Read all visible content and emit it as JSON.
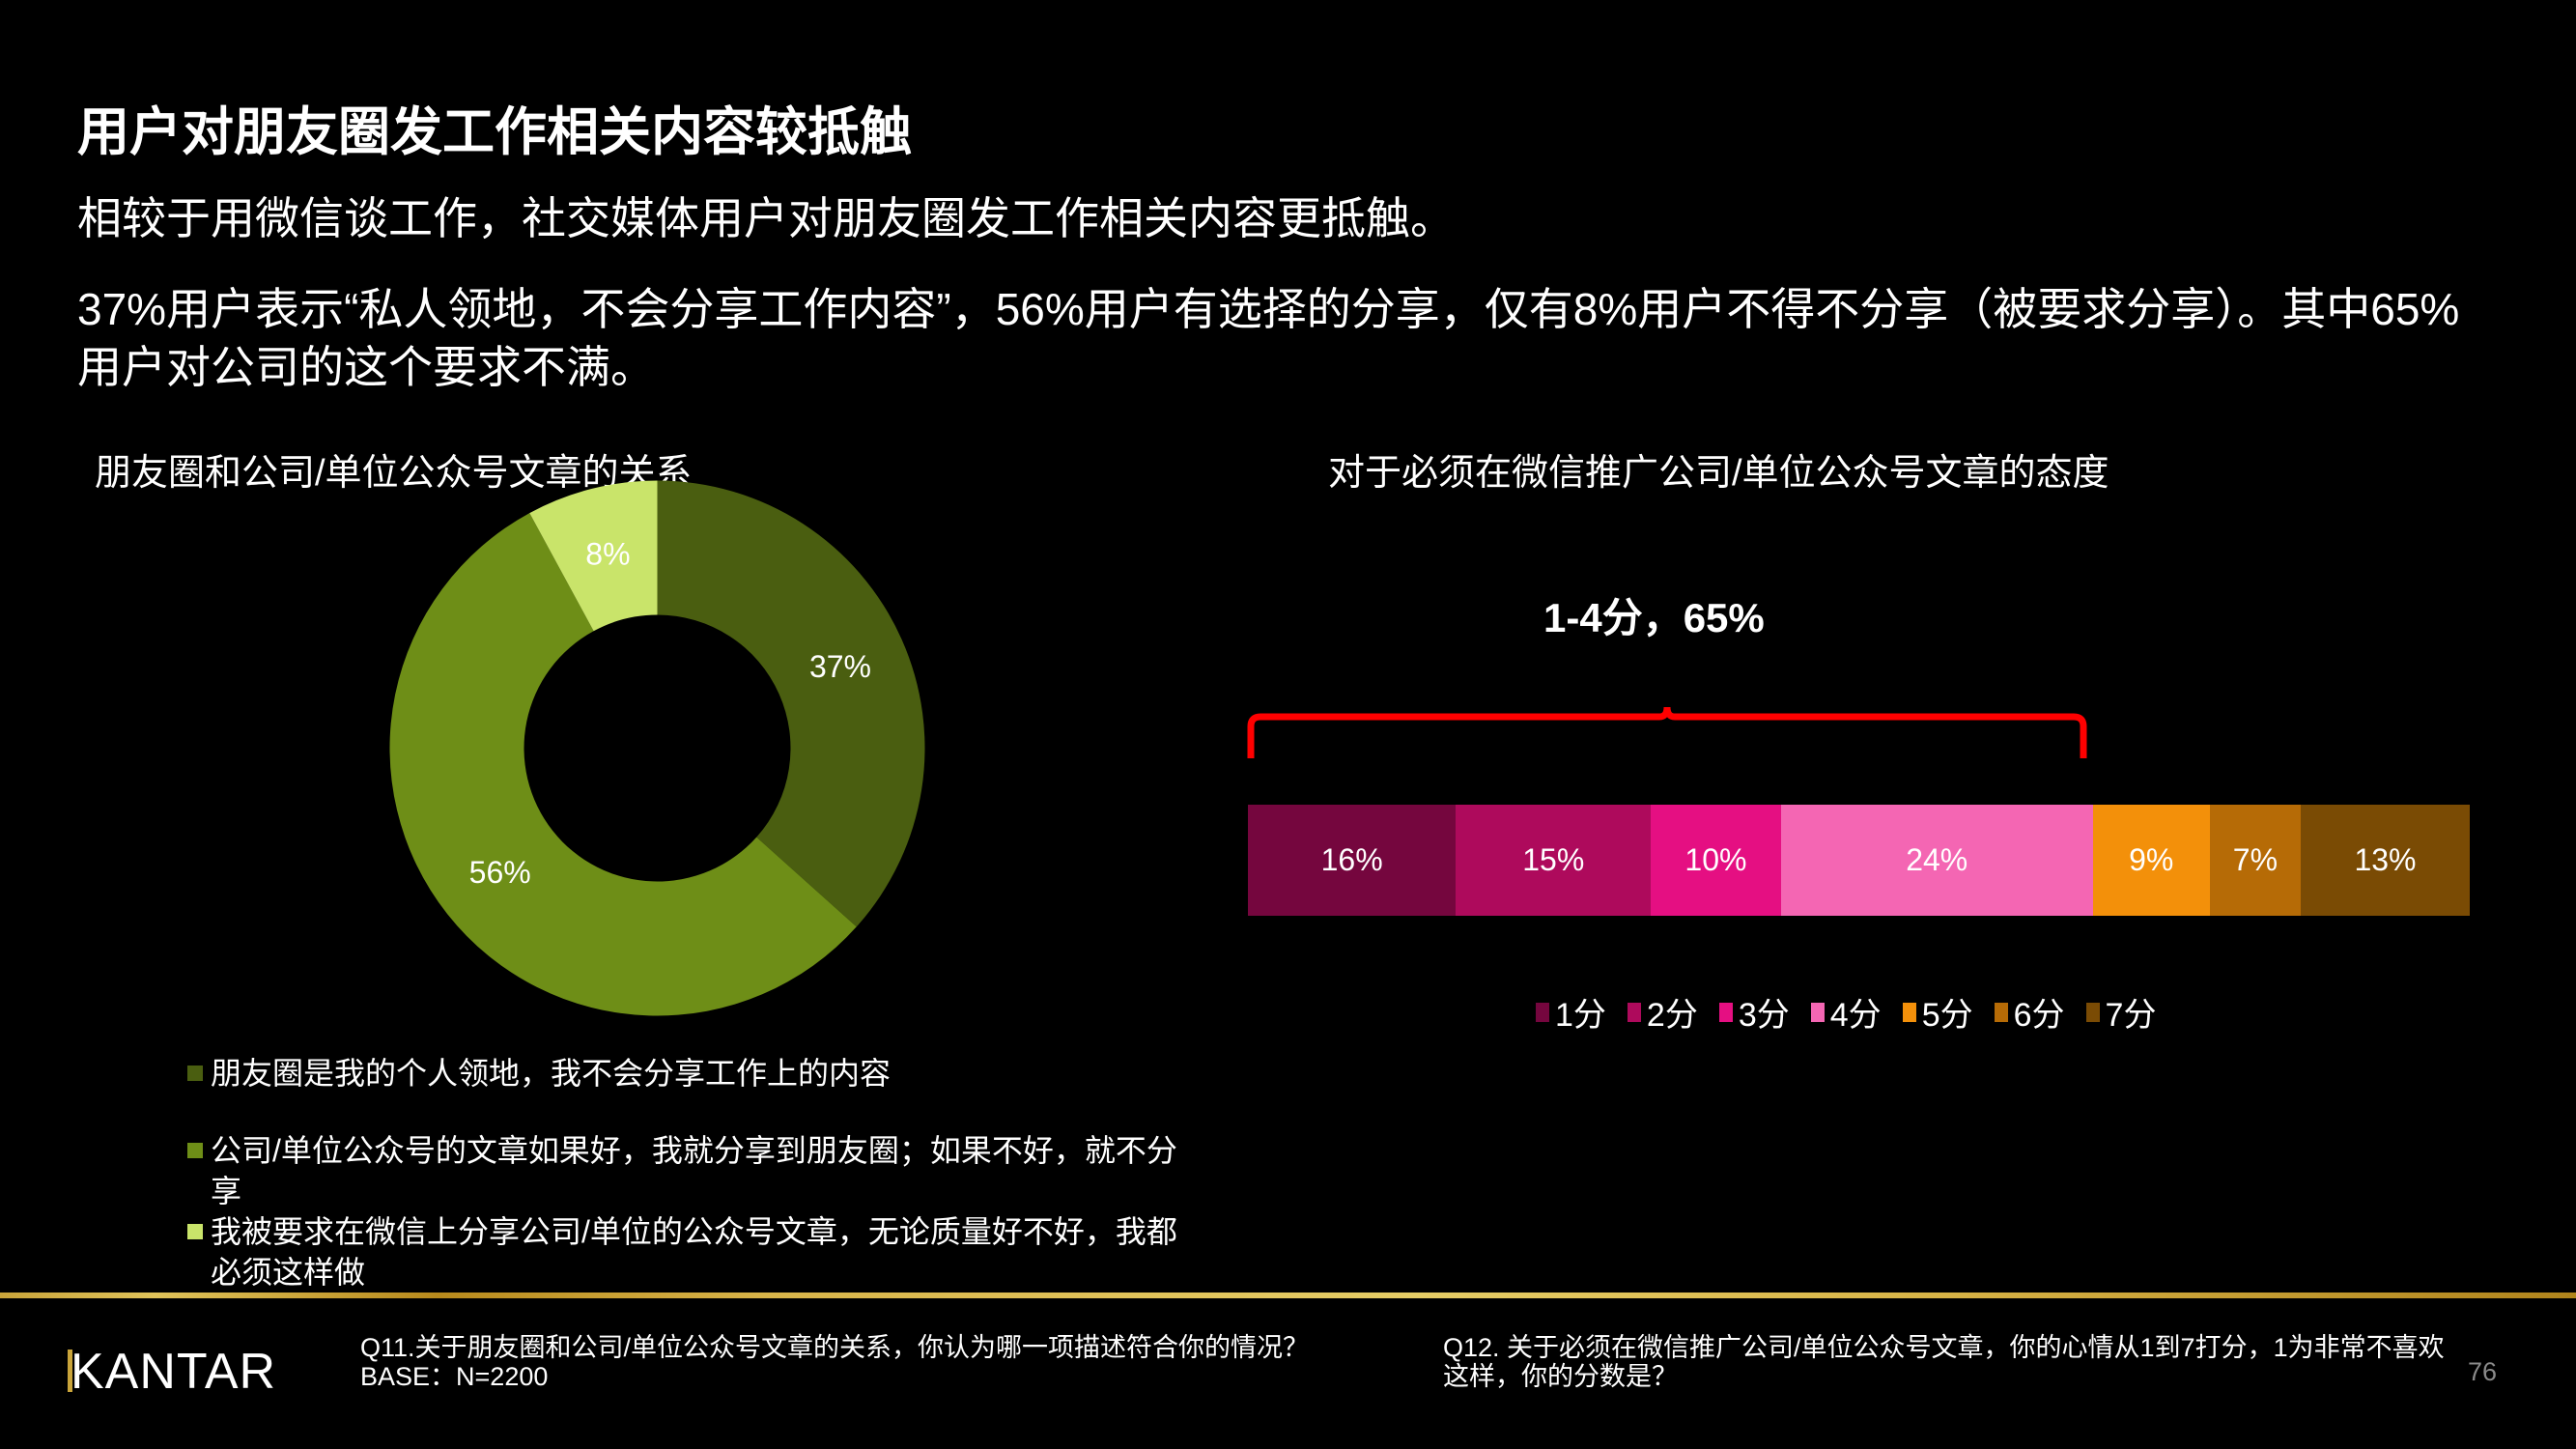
{
  "header": {
    "title": "用户对朋友圈发工作相关内容较抵触",
    "para1": "相较于用微信谈工作，社交媒体用户对朋友圈发工作相关内容更抵触。",
    "para2": "37%用户表示“私人领地，不会分享工作内容”，56%用户有选择的分享，仅有8%用户不得不分享（被要求分享）。其中65%用户对公司的这个要求不满。"
  },
  "left_chart": {
    "title": "朋友圈和公司/单位公众号文章的关系",
    "slices": [
      {
        "label": "37%",
        "value": 37,
        "color": "#4a5e10",
        "legend": "朋友圈是我的个人领地，我不会分享工作上的内容"
      },
      {
        "label": "56%",
        "value": 56,
        "color": "#6e8e17",
        "legend": "公司/单位公众号的文章如果好，我就分享到朋友圈；如果不好，就不分享"
      },
      {
        "label": "8%",
        "value": 8,
        "color": "#c9e46a",
        "legend": "我被要求在微信上分享公司/单位的公众号文章，无论质量好不好，我都必须这样做"
      }
    ]
  },
  "right_chart": {
    "title": "对于必须在微信推广公司/单位公众号文章的态度",
    "bracket_label": "1-4分，65%",
    "bracket_color": "#ff0000",
    "segments": [
      {
        "label": "16%",
        "value": 16,
        "color": "#75063e",
        "legend": "1分"
      },
      {
        "label": "15%",
        "value": 15,
        "color": "#ae0a5c",
        "legend": "2分"
      },
      {
        "label": "10%",
        "value": 10,
        "color": "#e50f82",
        "legend": "3分"
      },
      {
        "label": "24%",
        "value": 24,
        "color": "#f466b3",
        "legend": "4分"
      },
      {
        "label": "9%",
        "value": 9,
        "color": "#f3900a",
        "legend": "5分"
      },
      {
        "label": "7%",
        "value": 7,
        "color": "#b66b06",
        "legend": "6分"
      },
      {
        "label": "13%",
        "value": 13,
        "color": "#7a4b04",
        "legend": "7分"
      }
    ]
  },
  "footer": {
    "logo": "KANTAR",
    "q11": "Q11.关于朋友圈和公司/单位公众号文章的关系，你认为哪一项描述符合你的情况？",
    "base": "BASE：N=2200",
    "q12": "Q12. 关于必须在微信推广公司/单位公众号文章，你的心情从1到7打分，1为非常不喜欢这样，你的分数是？",
    "page_number": "76"
  },
  "chart_data": [
    {
      "type": "pie",
      "title": "朋友圈和公司/单位公众号文章的关系",
      "donut": true,
      "categories": [
        "朋友圈是我的个人领地，我不会分享工作上的内容",
        "公司/单位公众号的文章如果好，我就分享到朋友圈；如果不好，就不分享",
        "我被要求在微信上分享公司/单位的公众号文章，无论质量好不好，我都必须这样做"
      ],
      "values": [
        37,
        56,
        8
      ],
      "unit": "%",
      "colors": [
        "#4a5e10",
        "#6e8e17",
        "#c9e46a"
      ],
      "legend_position": "bottom"
    },
    {
      "type": "bar",
      "orientation": "horizontal",
      "stacked": true,
      "title": "对于必须在微信推广公司/单位公众号文章的态度",
      "categories": [
        "1分",
        "2分",
        "3分",
        "4分",
        "5分",
        "6分",
        "7分"
      ],
      "values": [
        16,
        15,
        10,
        24,
        9,
        7,
        13
      ],
      "unit": "%",
      "colors": [
        "#75063e",
        "#ae0a5c",
        "#e50f82",
        "#f466b3",
        "#f3900a",
        "#b66b06",
        "#7a4b04"
      ],
      "annotations": [
        {
          "text": "1-4分，65%",
          "spans": [
            "1分",
            "4分"
          ],
          "style": "red bracket above"
        }
      ],
      "legend_position": "bottom"
    }
  ]
}
